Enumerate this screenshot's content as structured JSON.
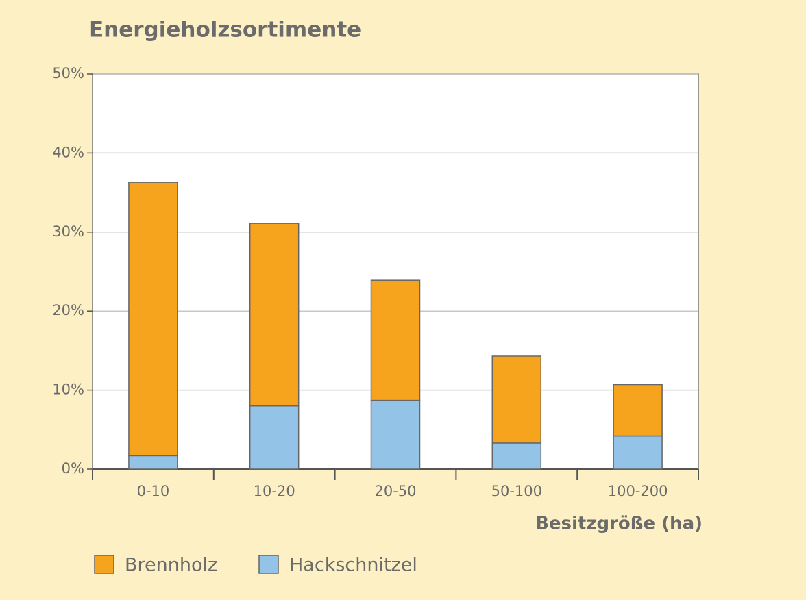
{
  "chart_data": {
    "type": "stacked-bar",
    "title": "Energieholzsortimente",
    "x_label": "Besitzgröße (ha)",
    "categories": [
      "0-10",
      "10-20",
      "20-50",
      "50-100",
      "100-200"
    ],
    "series": [
      {
        "name": "Brennholz",
        "color": "#f6a31d",
        "values": [
          34.6,
          23.1,
          15.2,
          11.0,
          6.5
        ]
      },
      {
        "name": "Hackschnitzel",
        "color": "#94c3e8",
        "values": [
          1.7,
          8.0,
          8.7,
          3.3,
          4.2
        ]
      }
    ],
    "ylim": [
      0,
      50
    ],
    "yticks": [
      {
        "value": 0,
        "label": "0%"
      },
      {
        "value": 10,
        "label": "10%"
      },
      {
        "value": 20,
        "label": "20%"
      },
      {
        "value": 30,
        "label": "30%"
      },
      {
        "value": 40,
        "label": "40%"
      },
      {
        "value": 50,
        "label": "50%"
      }
    ],
    "grid": true
  }
}
